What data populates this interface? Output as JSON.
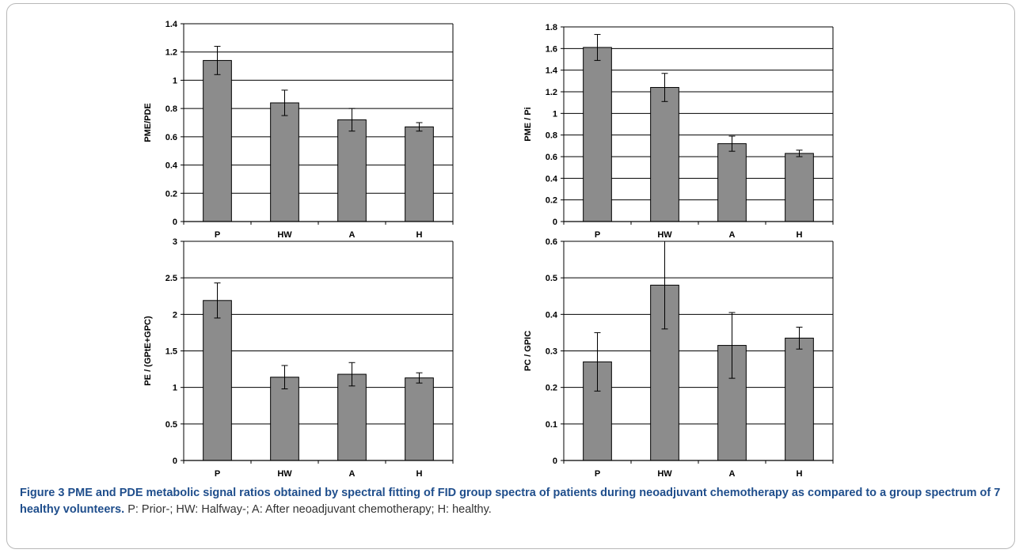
{
  "chart_data": [
    {
      "type": "bar",
      "categories": [
        "P",
        "HW",
        "A",
        "H"
      ],
      "values": [
        1.14,
        0.84,
        0.72,
        0.67
      ],
      "errors": [
        0.1,
        0.09,
        0.08,
        0.03
      ],
      "ylabel": "PME/PDE",
      "ylim": [
        0,
        1.4
      ],
      "yticks": [
        "0",
        "0.2",
        "0.4",
        "0.6",
        "0.8",
        "1",
        "1.2",
        "1.4"
      ],
      "grid": true
    },
    {
      "type": "bar",
      "categories": [
        "P",
        "HW",
        "A",
        "H"
      ],
      "values": [
        1.61,
        1.24,
        0.72,
        0.63
      ],
      "errors": [
        0.12,
        0.13,
        0.07,
        0.03
      ],
      "ylabel": "PME / Pi",
      "ylim": [
        0,
        1.8
      ],
      "yticks": [
        "0",
        "0.2",
        "0.4",
        "0.6",
        "0.8",
        "1",
        "1.2",
        "1.4",
        "1.6",
        "1.8"
      ],
      "grid": true
    },
    {
      "type": "bar",
      "categories": [
        "P",
        "HW",
        "A",
        "H"
      ],
      "values": [
        2.19,
        1.14,
        1.18,
        1.13
      ],
      "errors": [
        0.24,
        0.16,
        0.16,
        0.07
      ],
      "ylabel": "PE / (GPtE+GPC)",
      "ylim": [
        0,
        3
      ],
      "yticks": [
        "0",
        "0.5",
        "1",
        "1.5",
        "2",
        "2.5",
        "3"
      ],
      "grid": true
    },
    {
      "type": "bar",
      "categories": [
        "P",
        "HW",
        "A",
        "H"
      ],
      "values": [
        0.27,
        0.48,
        0.315,
        0.335
      ],
      "errors": [
        0.08,
        0.12,
        0.09,
        0.03
      ],
      "ylabel": "PC / GPIC",
      "ylim": [
        0,
        0.6
      ],
      "yticks": [
        "0",
        "0.1",
        "0.2",
        "0.3",
        "0.4",
        "0.5",
        "0.6"
      ],
      "grid": true
    }
  ],
  "style": {
    "bar_fill": "#8c8c8c",
    "bar_stroke": "#000000",
    "grid_color": "#000000",
    "caption_title_color": "#1f4e8c"
  },
  "caption": {
    "title": "Figure 3",
    "label": "PME and PDE metabolic signal ratios obtained by spectral fitting of FID group spectra of patients during neoadjuvant chemotherapy as compared to a group spectrum of 7 healthy volunteers.",
    "description": "P: Prior-; HW: Halfway-; A: After neoadjuvant chemotherapy; H: healthy."
  }
}
